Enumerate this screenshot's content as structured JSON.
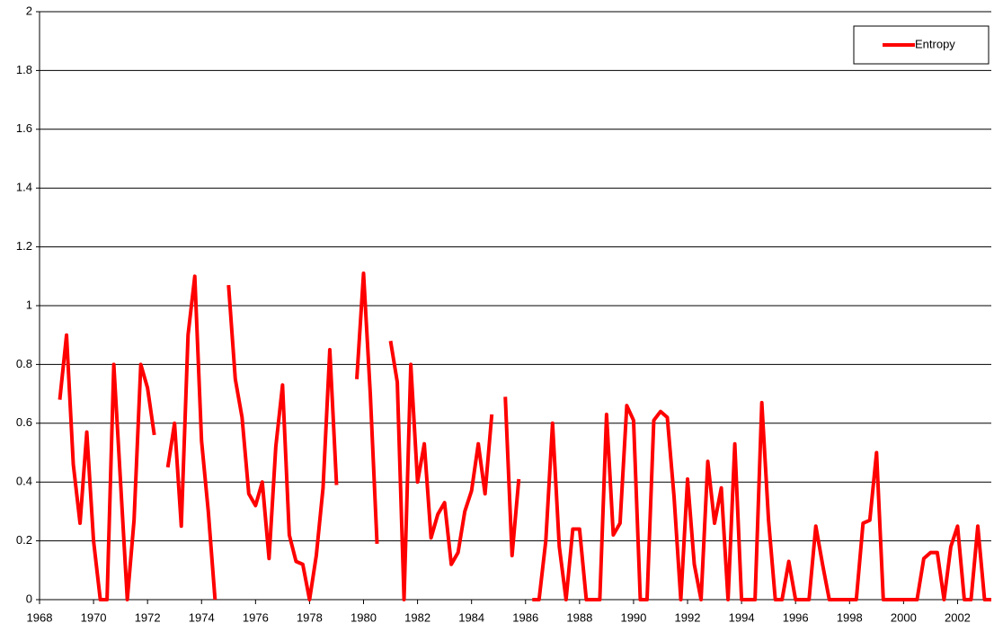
{
  "chart_data": {
    "type": "line",
    "x": [
      1968.75,
      1969,
      1969.25,
      1969.5,
      1969.75,
      1970,
      1970.25,
      1970.5,
      1970.75,
      1971,
      1971.25,
      1971.5,
      1971.75,
      1972,
      1972.25,
      1972.5,
      1972.75,
      1973,
      1973.25,
      1973.5,
      1973.75,
      1974,
      1974.25,
      1974.5,
      1974.75,
      1975,
      1975.25,
      1975.5,
      1975.75,
      1976,
      1976.25,
      1976.5,
      1976.75,
      1977,
      1977.25,
      1977.5,
      1977.75,
      1978,
      1978.25,
      1978.5,
      1978.75,
      1979,
      1979.25,
      1979.5,
      1979.75,
      1980,
      1980.25,
      1980.5,
      1980.75,
      1981,
      1981.25,
      1981.5,
      1981.75,
      1982,
      1982.25,
      1982.5,
      1982.75,
      1983,
      1983.25,
      1983.5,
      1983.75,
      1984,
      1984.25,
      1984.5,
      1984.75,
      1985,
      1985.25,
      1985.5,
      1985.75,
      1986,
      1986.25,
      1986.5,
      1986.75,
      1987,
      1987.25,
      1987.5,
      1987.75,
      1988,
      1988.25,
      1988.5,
      1988.75,
      1989,
      1989.25,
      1989.5,
      1989.75,
      1990,
      1990.25,
      1990.5,
      1990.75,
      1991,
      1991.25,
      1991.5,
      1991.75,
      1992,
      1992.25,
      1992.5,
      1992.75,
      1993,
      1993.25,
      1993.5,
      1993.75,
      1994,
      1994.25,
      1994.5,
      1994.75,
      1995,
      1995.25,
      1995.5,
      1995.75,
      1996,
      1996.25,
      1996.5,
      1996.75,
      1997,
      1997.25,
      1997.5,
      1997.75,
      1998,
      1998.25,
      1998.5,
      1998.75,
      1999,
      1999.25,
      1999.5,
      1999.75,
      2000,
      2000.25,
      2000.5,
      2000.75,
      2001,
      2001.25,
      2001.5,
      2001.75,
      2002,
      2002.25,
      2002.5,
      2002.75,
      2003,
      2003.25
    ],
    "series": [
      {
        "name": "Entropy",
        "color": "#ff0000",
        "values": [
          0.68,
          0.9,
          0.46,
          0.26,
          0.57,
          0.2,
          0,
          0,
          0.8,
          0.4,
          0,
          0.27,
          0.8,
          0.72,
          0.56,
          null,
          0.45,
          0.6,
          0.25,
          0.9,
          1.1,
          0.54,
          0.3,
          0,
          null,
          1.07,
          0.75,
          0.62,
          0.36,
          0.32,
          0.4,
          0.14,
          0.52,
          0.73,
          0.22,
          0.13,
          0.12,
          0,
          0.15,
          0.38,
          0.85,
          0.39,
          null,
          null,
          0.75,
          1.11,
          0.7,
          0.19,
          null,
          0.88,
          0.74,
          0,
          0.8,
          0.4,
          0.53,
          0.21,
          0.29,
          0.33,
          0.12,
          0.16,
          0.3,
          0.37,
          0.53,
          0.36,
          0.63,
          null,
          0.69,
          0.15,
          0.41,
          null,
          0,
          0,
          0.2,
          0.6,
          0.18,
          0,
          0.24,
          0.24,
          0,
          0,
          0,
          0.63,
          0.22,
          0.26,
          0.66,
          0.61,
          0,
          0,
          0.61,
          0.64,
          0.62,
          0.35,
          0,
          0.41,
          0.12,
          0,
          0.47,
          0.26,
          0.38,
          0,
          0.53,
          0,
          0,
          0,
          0.67,
          0.27,
          0,
          0,
          0.13,
          0,
          0,
          0,
          0.25,
          0.12,
          0,
          0,
          0,
          0,
          0,
          0.26,
          0.27,
          0.5,
          0,
          0,
          0,
          0,
          0,
          0,
          0.14,
          0.16,
          0.16,
          0,
          0.18,
          0.25,
          0,
          0,
          0.25,
          0,
          0
        ]
      }
    ],
    "xlim": [
      1968,
      2003.25
    ],
    "xticks": [
      1968,
      1970,
      1972,
      1974,
      1976,
      1978,
      1980,
      1982,
      1984,
      1986,
      1988,
      1990,
      1992,
      1994,
      1996,
      1998,
      2000,
      2002
    ],
    "ylim": [
      0,
      2
    ],
    "yticks": [
      0,
      0.2,
      0.4,
      0.6,
      0.8,
      1,
      1.2,
      1.4,
      1.6,
      1.8,
      2
    ],
    "grid": true,
    "legend": "top-right"
  }
}
